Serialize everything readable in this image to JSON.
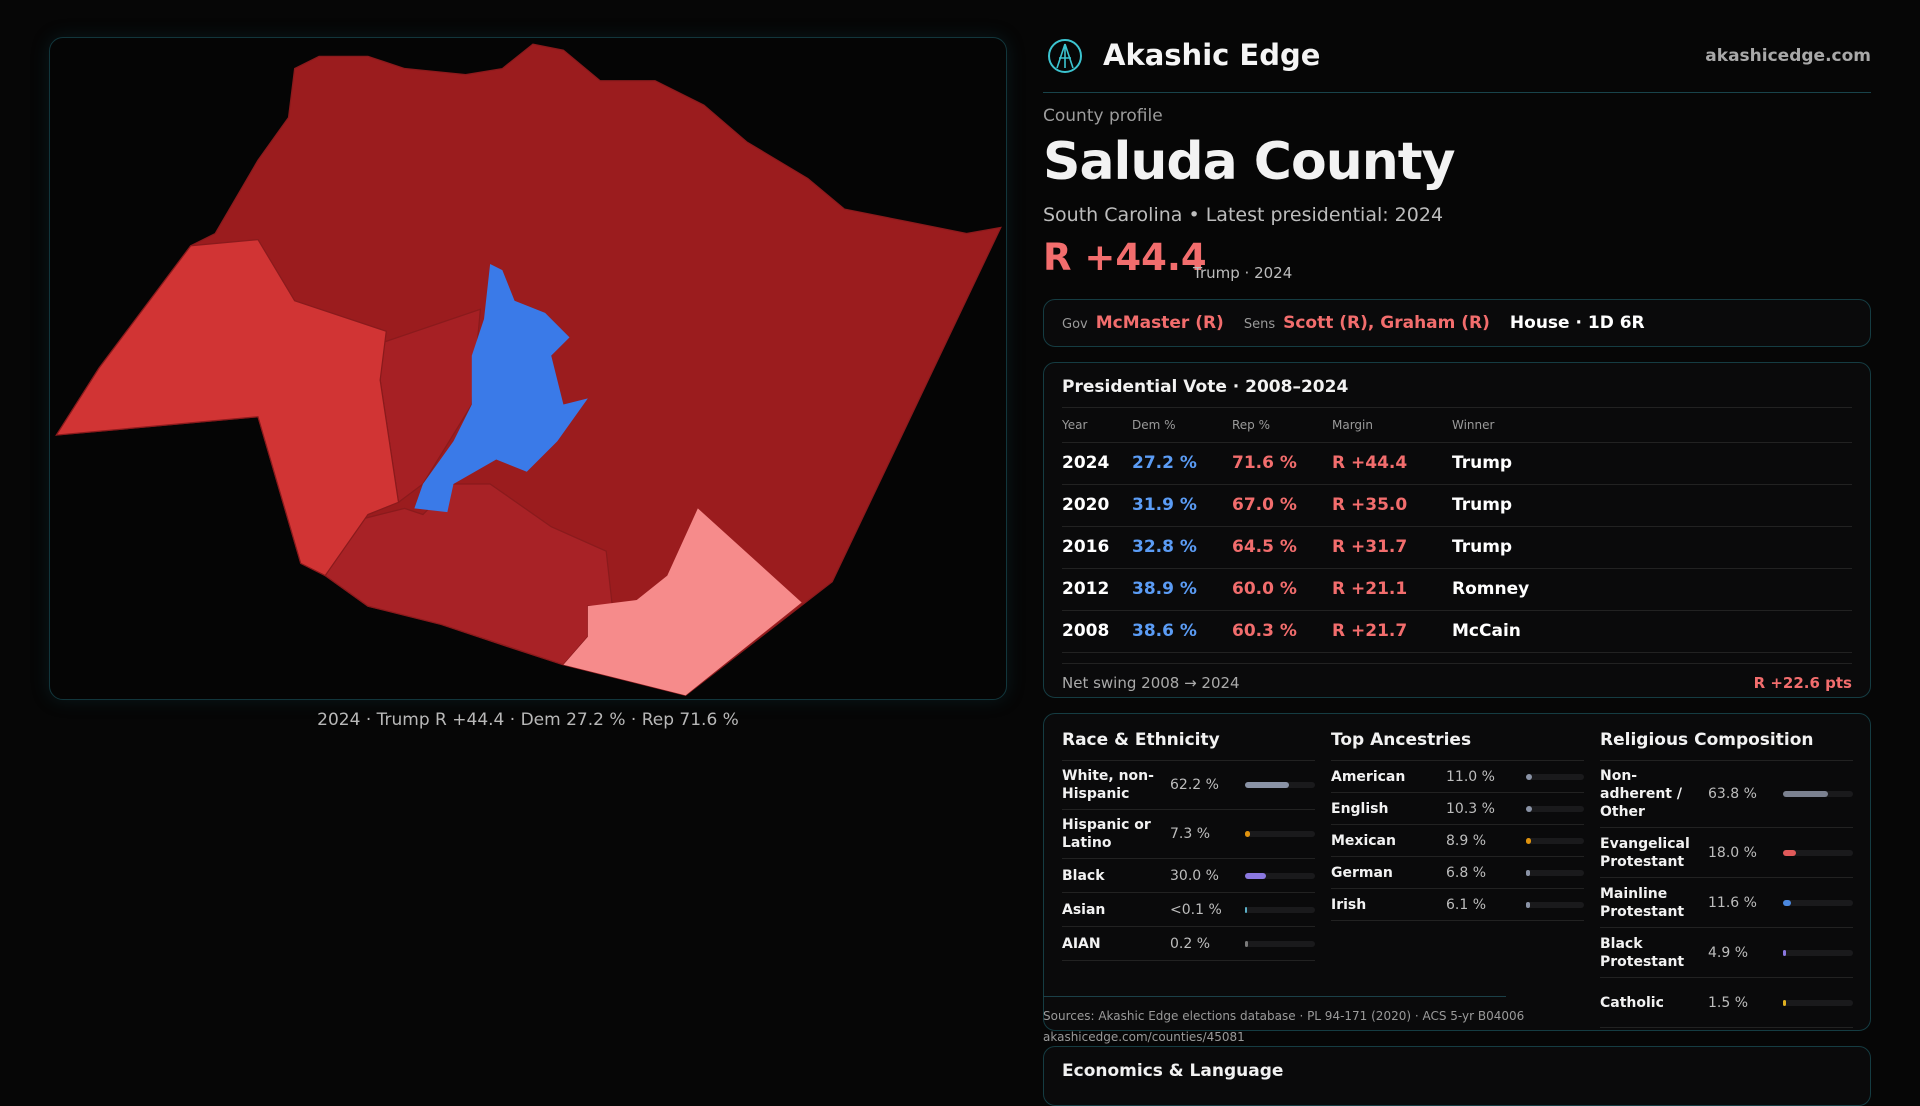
{
  "map": {
    "caption": "2024 · Trump R +44.4 · Dem 27.2 % · Rep 71.6 %",
    "colors": {
      "safe_r": "#9b1c1e",
      "likely_r": "#d13434",
      "lean_r": "#a82226",
      "light_r": "#f68b8b",
      "dem": "#3a7ae8"
    }
  },
  "header": {
    "brand": "Akashic Edge",
    "domain": "akashicedge.com",
    "logo_icon": "akashic-logo-icon"
  },
  "profile": {
    "kicker": "County profile",
    "title": "Saluda County",
    "subtitle": "South Carolina • Latest presidential: 2024",
    "margin": "R +44.4",
    "margin_note": "Trump · 2024"
  },
  "officials": {
    "gov_label": "Gov",
    "gov": "McMaster (R)",
    "sens_label": "Sens",
    "sens": "Scott (R), Graham (R)",
    "house": "House · 1D 6R"
  },
  "presidential": {
    "title": "Presidential Vote · 2008–2024",
    "headers": [
      "Year",
      "Dem %",
      "Rep %",
      "Margin",
      "Winner"
    ],
    "rows": [
      [
        "2024",
        "27.2 %",
        "71.6 %",
        "R +44.4",
        "Trump"
      ],
      [
        "2020",
        "31.9 %",
        "67.0 %",
        "R +35.0",
        "Trump"
      ],
      [
        "2016",
        "32.8 %",
        "64.5 %",
        "R +31.7",
        "Trump"
      ],
      [
        "2012",
        "38.9 %",
        "60.0 %",
        "R +21.1",
        "Romney"
      ],
      [
        "2008",
        "38.6 %",
        "60.3 %",
        "R +21.7",
        "McCain"
      ]
    ],
    "swing_label": "Net swing 2008 → 2024",
    "swing_value": "R +22.6 pts"
  },
  "race": {
    "title": "Race & Ethnicity",
    "items": [
      {
        "name": "White, non-Hispanic",
        "value": "62.2 %",
        "pct": 62.2,
        "color": "#8a93a6"
      },
      {
        "name": "Hispanic or Latino",
        "value": "7.3 %",
        "pct": 7.3,
        "color": "#e0930e"
      },
      {
        "name": "Black",
        "value": "30.0 %",
        "pct": 30.0,
        "color": "#8b78e0"
      },
      {
        "name": "Asian",
        "value": "<0.1 %",
        "pct": 0.05,
        "color": "#5bb0c8"
      },
      {
        "name": "AIAN",
        "value": "0.2 %",
        "pct": 0.2,
        "color": "#7a7a7a"
      }
    ]
  },
  "ancestry": {
    "title": "Top Ancestries",
    "items": [
      {
        "name": "American",
        "value": "11.0 %",
        "pct": 11.0,
        "color": "#8a93a6"
      },
      {
        "name": "English",
        "value": "10.3 %",
        "pct": 10.3,
        "color": "#8a93a6"
      },
      {
        "name": "Mexican",
        "value": "8.9 %",
        "pct": 8.9,
        "color": "#e0930e"
      },
      {
        "name": "German",
        "value": "6.8 %",
        "pct": 6.8,
        "color": "#8a93a6"
      },
      {
        "name": "Irish",
        "value": "6.1 %",
        "pct": 6.1,
        "color": "#8a93a6"
      }
    ]
  },
  "religion": {
    "title": "Religious Composition",
    "items": [
      {
        "name": "Non-adherent / Other",
        "value": "63.8 %",
        "pct": 63.8,
        "color": "#7b8190"
      },
      {
        "name": "Evangelical Protestant",
        "value": "18.0 %",
        "pct": 18.0,
        "color": "#e05a5a"
      },
      {
        "name": "Mainline Protestant",
        "value": "11.6 %",
        "pct": 11.6,
        "color": "#4a88e0"
      },
      {
        "name": "Black Protestant",
        "value": "4.9 %",
        "pct": 4.9,
        "color": "#8b78e0"
      },
      {
        "name": "Catholic",
        "value": "1.5 %",
        "pct": 1.5,
        "color": "#e0b020"
      }
    ]
  },
  "sources": {
    "text": "Sources: Akashic Edge elections database · PL 94-171 (2020) · ACS 5-yr B04006",
    "url": "akashicedge.com/counties/45081"
  },
  "economics": {
    "title": "Economics & Language"
  }
}
